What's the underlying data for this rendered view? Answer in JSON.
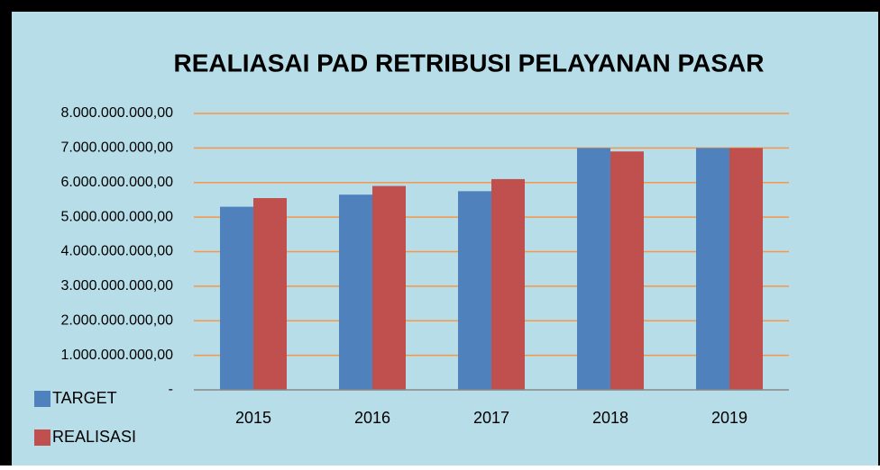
{
  "chart_data": {
    "type": "bar",
    "title": "REALIASAI PAD  RETRIBUSI PELAYANAN PASAR",
    "categories": [
      "2015",
      "2016",
      "2017",
      "2018",
      "2019"
    ],
    "series": [
      {
        "name": "TARGET",
        "color": "#4f81bd",
        "values": [
          5300000000,
          5650000000,
          5750000000,
          7000000000,
          7000000000
        ]
      },
      {
        "name": "REALISASI",
        "color": "#c0504d",
        "values": [
          5550000000,
          5900000000,
          6100000000,
          6900000000,
          7000000000
        ]
      }
    ],
    "ylim": [
      0,
      8000000000
    ],
    "yticks": [
      {
        "value": 0,
        "label": "-"
      },
      {
        "value": 1000000000,
        "label": "1.000.000.000,00"
      },
      {
        "value": 2000000000,
        "label": "2.000.000.000,00"
      },
      {
        "value": 3000000000,
        "label": "3.000.000.000,00"
      },
      {
        "value": 4000000000,
        "label": "4.000.000.000,00"
      },
      {
        "value": 5000000000,
        "label": "5.000.000.000,00"
      },
      {
        "value": 6000000000,
        "label": "6.000.000.000,00"
      },
      {
        "value": 7000000000,
        "label": "7.000.000.000,00"
      },
      {
        "value": 8000000000,
        "label": "8.000.000.000,00"
      }
    ],
    "grid": true,
    "grid_color": "#f79646",
    "legend": "bottom-left"
  }
}
